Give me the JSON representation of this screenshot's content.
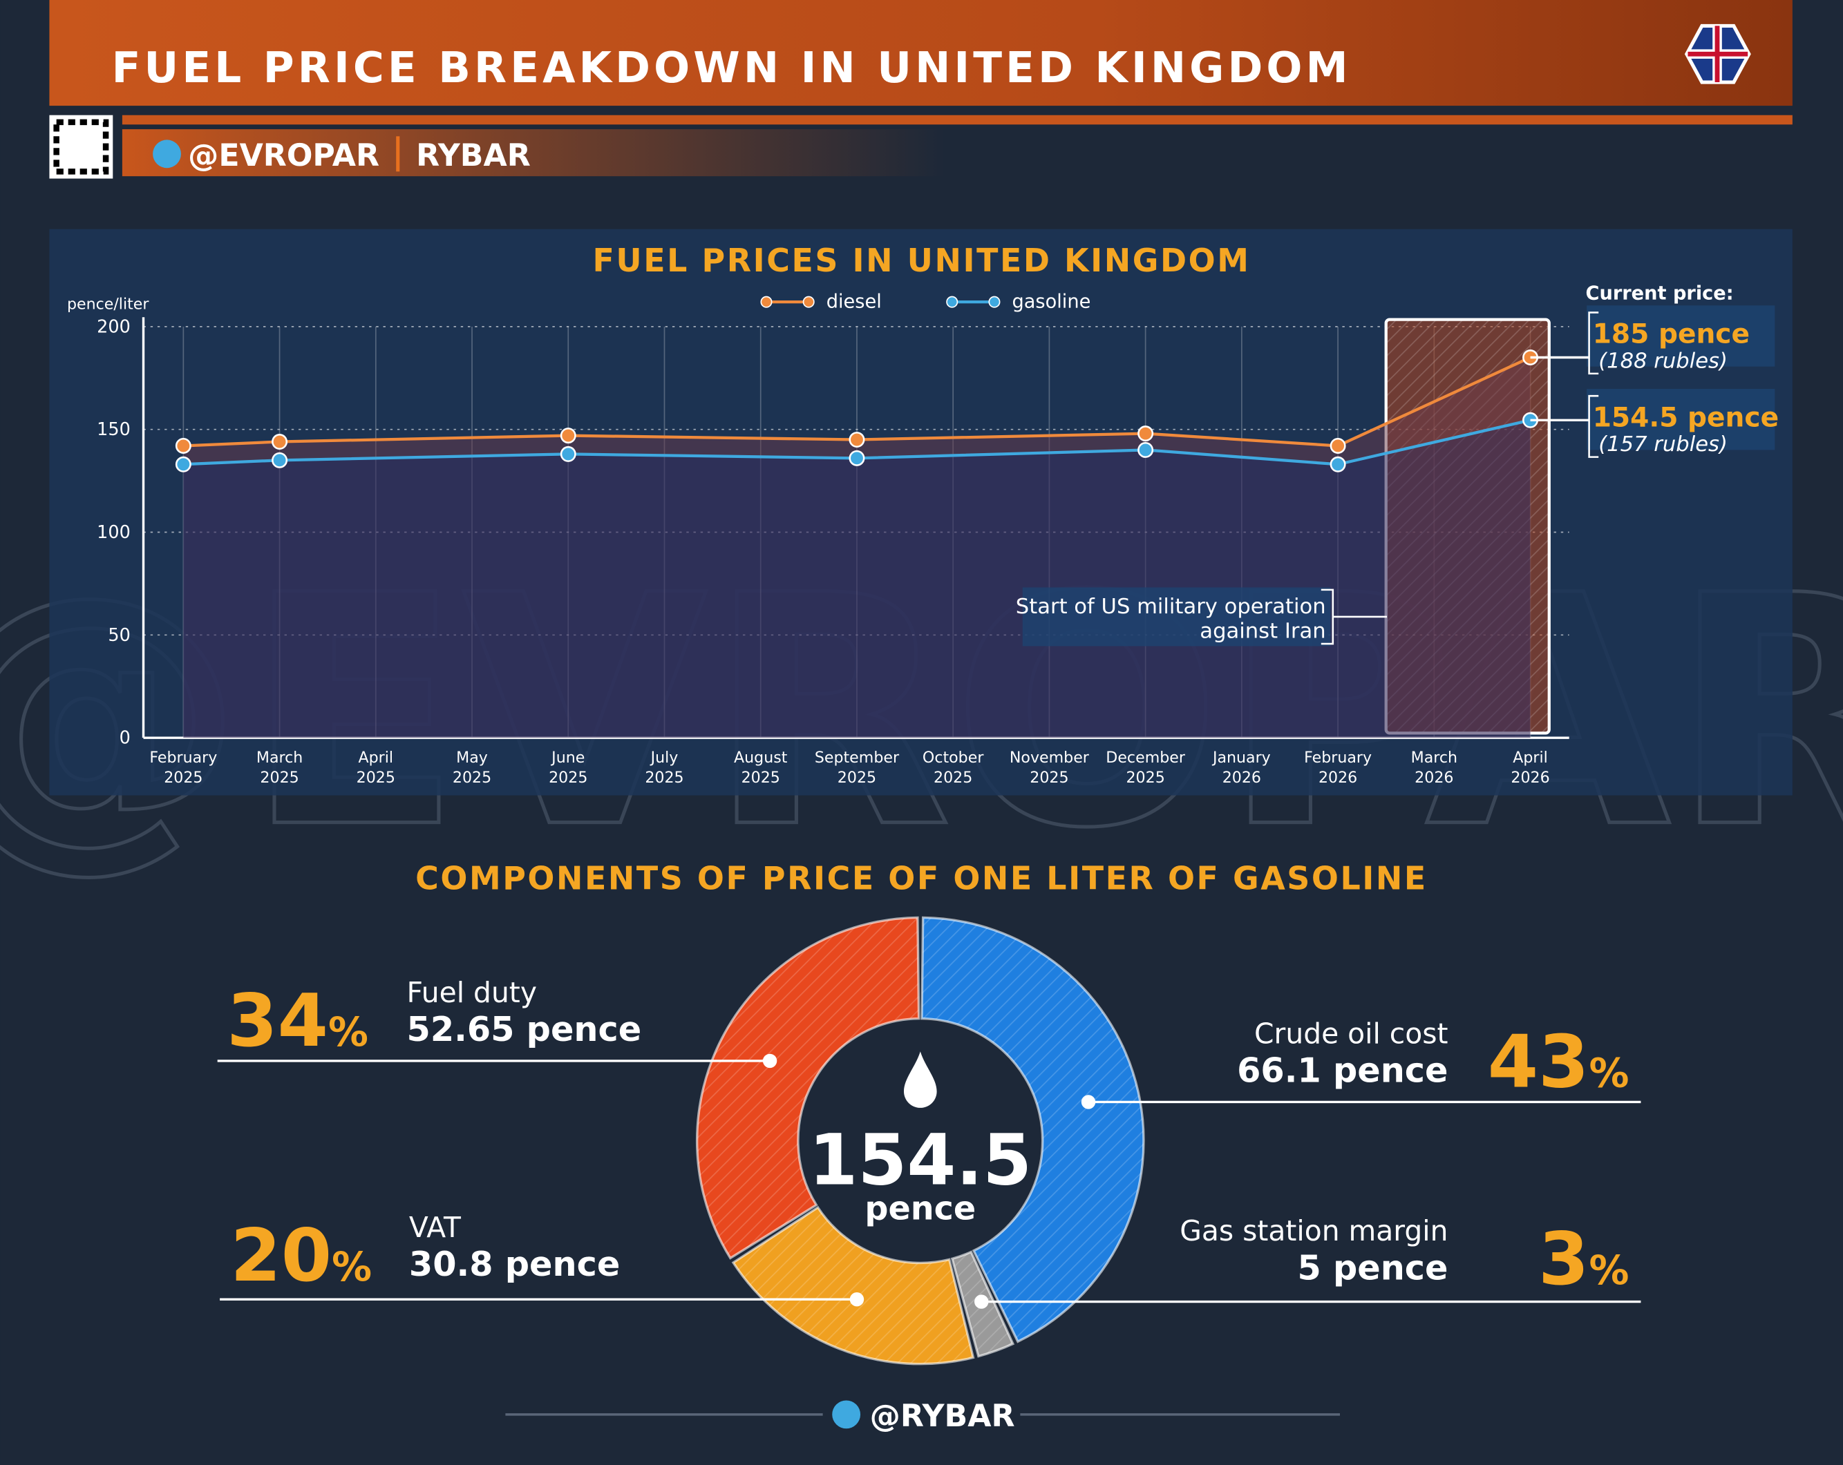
{
  "header": {
    "title": "FUEL PRICE BREAKDOWN IN UNITED KINGDOM",
    "handle": "@EVROPAR",
    "brand": "RYBAR"
  },
  "footer": {
    "handle": "@RYBAR"
  },
  "chart_data": [
    {
      "type": "line",
      "title": "FUEL PRICES IN UNITED KINGDOM",
      "y_label": "pence/liter",
      "categories": [
        "February 2025",
        "March 2025",
        "April 2025",
        "May 2025",
        "June 2025",
        "July 2025",
        "August 2025",
        "September 2025",
        "October 2025",
        "November 2025",
        "December 2025",
        "January 2026",
        "February 2026",
        "March 2026",
        "April 2026"
      ],
      "series": [
        {
          "name": "diesel",
          "color": "#f08a3c",
          "x": [
            "February 2025",
            "March 2025",
            "June 2025",
            "September 2025",
            "December 2025",
            "February 2026",
            "April 2026"
          ],
          "values": [
            142,
            144,
            147,
            145,
            148,
            142,
            185
          ]
        },
        {
          "name": "gasoline",
          "color": "#3fa9e0",
          "x": [
            "February 2025",
            "March 2025",
            "June 2025",
            "September 2025",
            "December 2025",
            "February 2026",
            "April 2026"
          ],
          "values": [
            133,
            135,
            138,
            136,
            140,
            133,
            154.5
          ]
        }
      ],
      "ylim": [
        0,
        200
      ],
      "yticks": [
        0,
        50,
        100,
        150,
        200
      ],
      "grid": true,
      "current_price_label": "Current price:",
      "current_prices": [
        {
          "value": "185 pence",
          "rubles": "(188 rubles)"
        },
        {
          "value": "154.5 pence",
          "rubles": "(157 rubles)"
        }
      ],
      "annotation": [
        "Start of US military operation",
        "against Iran"
      ]
    },
    {
      "type": "pie",
      "title": "COMPONENTS OF PRICE OF ONE LITER OF GASOLINE",
      "center_value": "154.5",
      "center_unit": "pence",
      "categories": [
        "Crude oil cost",
        "Gas station margin",
        "VAT",
        "Fuel duty"
      ],
      "values": [
        43,
        3,
        20,
        34
      ],
      "value_labels": [
        "43%",
        "3%",
        "20%",
        "34%"
      ],
      "amounts": [
        "66.1 pence",
        "5 pence",
        "30.8 pence",
        "52.65 pence"
      ],
      "colors": [
        "#1f7fe0",
        "#9a9a9a",
        "#f0a020",
        "#e8481e"
      ]
    }
  ]
}
